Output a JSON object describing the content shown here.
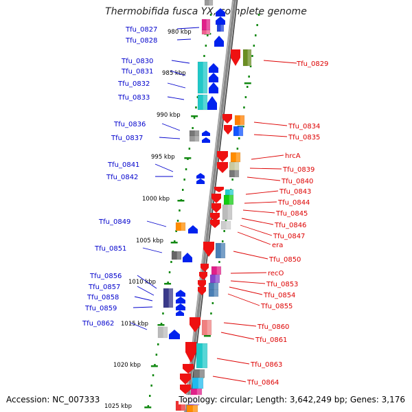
{
  "title": "Thermobifida fusca YX, complete genome",
  "footer": {
    "accession": "Accession: NC_007333",
    "topology": "Topology: circular; Length: 3,642,249 bp; Genes: 3,176"
  },
  "kbp_labels": [
    "980 kbp",
    "985 kbp",
    "990 kbp",
    "995 kbp",
    "1000 kbp",
    "1005 kbp",
    "1010 kbp",
    "1015 kbp",
    "1020 kbp",
    "1025 kbp"
  ],
  "colors": {
    "left_label": "#0000cc",
    "right_label": "#dd0000",
    "tick": "#118811",
    "backbone": "#888888"
  },
  "left_genes": [
    "Tfu_0827",
    "Tfu_0828",
    "Tfu_0830",
    "Tfu_0831",
    "Tfu_0832",
    "Tfu_0833",
    "Tfu_0836",
    "Tfu_0837",
    "Tfu_0841",
    "Tfu_0842",
    "Tfu_0849",
    "Tfu_0851",
    "Tfu_0856",
    "Tfu_0857",
    "Tfu_0858",
    "Tfu_0859",
    "Tfu_0862"
  ],
  "right_genes": [
    "Tfu_0829",
    "Tfu_0834",
    "Tfu_0835",
    "hrcA",
    "Tfu_0839",
    "Tfu_0840",
    "Tfu_0843",
    "Tfu_0844",
    "Tfu_0845",
    "Tfu_0846",
    "Tfu_0847",
    "era",
    "Tfu_0850",
    "recO",
    "Tfu_0853",
    "Tfu_0854",
    "Tfu_0855",
    "Tfu_0860",
    "Tfu_0861",
    "Tfu_0863",
    "Tfu_0864"
  ]
}
